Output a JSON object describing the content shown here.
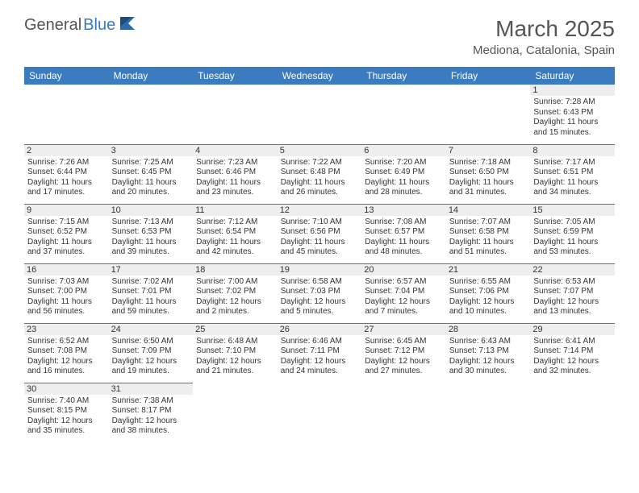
{
  "logo": {
    "text1": "General",
    "text2": "Blue"
  },
  "title": "March 2025",
  "location": "Mediona, Catalonia, Spain",
  "colors": {
    "header_bg": "#3b7bbf",
    "daynum_bg": "#eeeeee",
    "border": "#3b7bbf",
    "text": "#333333",
    "title": "#555555"
  },
  "dayNames": [
    "Sunday",
    "Monday",
    "Tuesday",
    "Wednesday",
    "Thursday",
    "Friday",
    "Saturday"
  ],
  "weeks": [
    [
      null,
      null,
      null,
      null,
      null,
      null,
      {
        "n": "1",
        "sr": "7:28 AM",
        "ss": "6:43 PM",
        "dl": "11 hours and 15 minutes."
      }
    ],
    [
      {
        "n": "2",
        "sr": "7:26 AM",
        "ss": "6:44 PM",
        "dl": "11 hours and 17 minutes."
      },
      {
        "n": "3",
        "sr": "7:25 AM",
        "ss": "6:45 PM",
        "dl": "11 hours and 20 minutes."
      },
      {
        "n": "4",
        "sr": "7:23 AM",
        "ss": "6:46 PM",
        "dl": "11 hours and 23 minutes."
      },
      {
        "n": "5",
        "sr": "7:22 AM",
        "ss": "6:48 PM",
        "dl": "11 hours and 26 minutes."
      },
      {
        "n": "6",
        "sr": "7:20 AM",
        "ss": "6:49 PM",
        "dl": "11 hours and 28 minutes."
      },
      {
        "n": "7",
        "sr": "7:18 AM",
        "ss": "6:50 PM",
        "dl": "11 hours and 31 minutes."
      },
      {
        "n": "8",
        "sr": "7:17 AM",
        "ss": "6:51 PM",
        "dl": "11 hours and 34 minutes."
      }
    ],
    [
      {
        "n": "9",
        "sr": "7:15 AM",
        "ss": "6:52 PM",
        "dl": "11 hours and 37 minutes."
      },
      {
        "n": "10",
        "sr": "7:13 AM",
        "ss": "6:53 PM",
        "dl": "11 hours and 39 minutes."
      },
      {
        "n": "11",
        "sr": "7:12 AM",
        "ss": "6:54 PM",
        "dl": "11 hours and 42 minutes."
      },
      {
        "n": "12",
        "sr": "7:10 AM",
        "ss": "6:56 PM",
        "dl": "11 hours and 45 minutes."
      },
      {
        "n": "13",
        "sr": "7:08 AM",
        "ss": "6:57 PM",
        "dl": "11 hours and 48 minutes."
      },
      {
        "n": "14",
        "sr": "7:07 AM",
        "ss": "6:58 PM",
        "dl": "11 hours and 51 minutes."
      },
      {
        "n": "15",
        "sr": "7:05 AM",
        "ss": "6:59 PM",
        "dl": "11 hours and 53 minutes."
      }
    ],
    [
      {
        "n": "16",
        "sr": "7:03 AM",
        "ss": "7:00 PM",
        "dl": "11 hours and 56 minutes."
      },
      {
        "n": "17",
        "sr": "7:02 AM",
        "ss": "7:01 PM",
        "dl": "11 hours and 59 minutes."
      },
      {
        "n": "18",
        "sr": "7:00 AM",
        "ss": "7:02 PM",
        "dl": "12 hours and 2 minutes."
      },
      {
        "n": "19",
        "sr": "6:58 AM",
        "ss": "7:03 PM",
        "dl": "12 hours and 5 minutes."
      },
      {
        "n": "20",
        "sr": "6:57 AM",
        "ss": "7:04 PM",
        "dl": "12 hours and 7 minutes."
      },
      {
        "n": "21",
        "sr": "6:55 AM",
        "ss": "7:06 PM",
        "dl": "12 hours and 10 minutes."
      },
      {
        "n": "22",
        "sr": "6:53 AM",
        "ss": "7:07 PM",
        "dl": "12 hours and 13 minutes."
      }
    ],
    [
      {
        "n": "23",
        "sr": "6:52 AM",
        "ss": "7:08 PM",
        "dl": "12 hours and 16 minutes."
      },
      {
        "n": "24",
        "sr": "6:50 AM",
        "ss": "7:09 PM",
        "dl": "12 hours and 19 minutes."
      },
      {
        "n": "25",
        "sr": "6:48 AM",
        "ss": "7:10 PM",
        "dl": "12 hours and 21 minutes."
      },
      {
        "n": "26",
        "sr": "6:46 AM",
        "ss": "7:11 PM",
        "dl": "12 hours and 24 minutes."
      },
      {
        "n": "27",
        "sr": "6:45 AM",
        "ss": "7:12 PM",
        "dl": "12 hours and 27 minutes."
      },
      {
        "n": "28",
        "sr": "6:43 AM",
        "ss": "7:13 PM",
        "dl": "12 hours and 30 minutes."
      },
      {
        "n": "29",
        "sr": "6:41 AM",
        "ss": "7:14 PM",
        "dl": "12 hours and 32 minutes."
      }
    ],
    [
      {
        "n": "30",
        "sr": "7:40 AM",
        "ss": "8:15 PM",
        "dl": "12 hours and 35 minutes."
      },
      {
        "n": "31",
        "sr": "7:38 AM",
        "ss": "8:17 PM",
        "dl": "12 hours and 38 minutes."
      },
      null,
      null,
      null,
      null,
      null
    ]
  ],
  "labels": {
    "sunrise": "Sunrise:",
    "sunset": "Sunset:",
    "daylight": "Daylight:"
  }
}
